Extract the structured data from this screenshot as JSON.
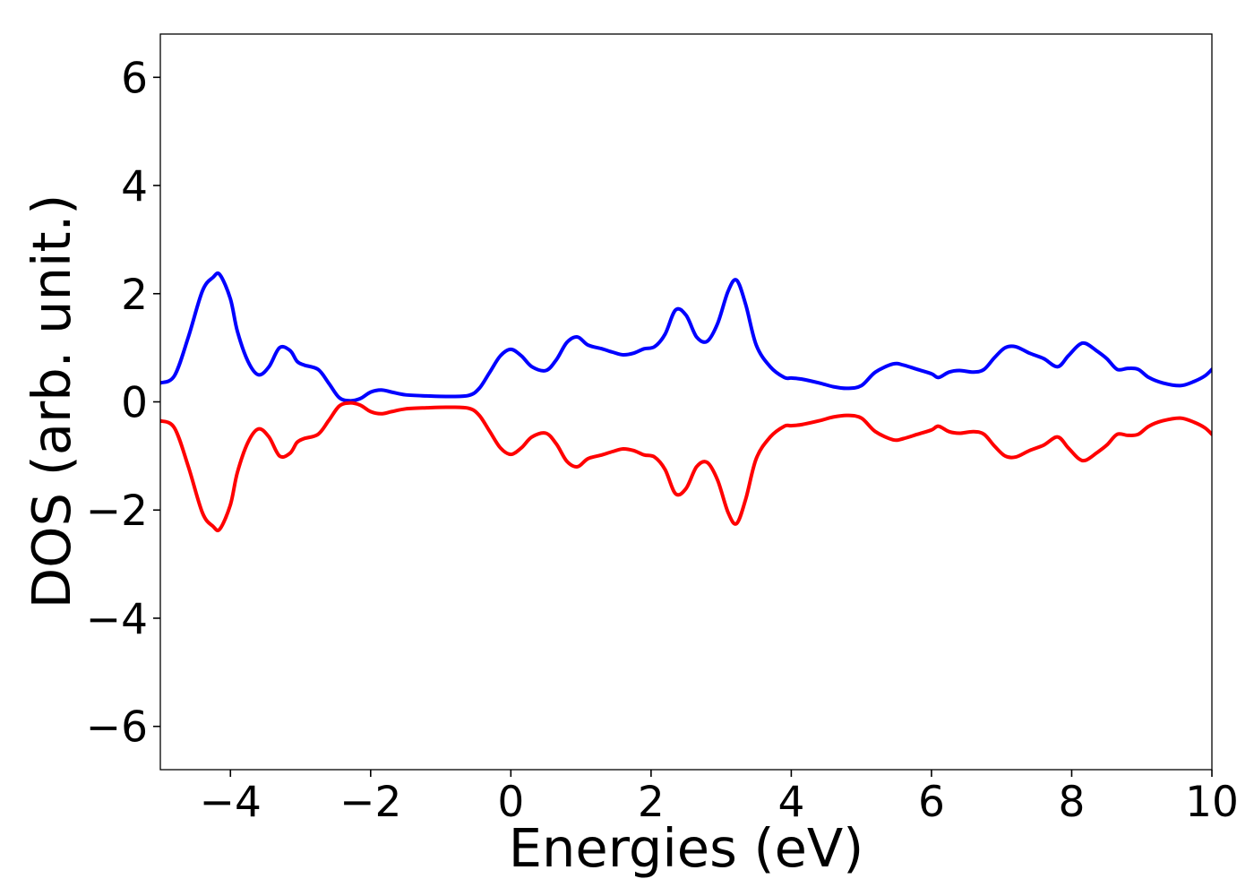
{
  "chart_data": {
    "type": "line",
    "title": "",
    "xlabel": "Energies (eV)",
    "ylabel": "DOS (arb. unit.)",
    "xlim": [
      -5,
      10
    ],
    "ylim": [
      -6.8,
      6.8
    ],
    "grid": false,
    "legend": "none",
    "xticks": [
      -4,
      -2,
      0,
      2,
      4,
      6,
      8,
      10
    ],
    "xtick_labels": [
      "−4",
      "−2",
      "0",
      "2",
      "4",
      "6",
      "8",
      "10"
    ],
    "yticks": [
      -6,
      -4,
      -2,
      0,
      2,
      4,
      6
    ],
    "ytick_labels": [
      "−6",
      "−4",
      "−2",
      "0",
      "2",
      "4",
      "6"
    ],
    "series": [
      {
        "color": "#0000ff",
        "x": [
          -5.0,
          -4.8,
          -4.6,
          -4.4,
          -4.25,
          -4.15,
          -4.0,
          -3.9,
          -3.75,
          -3.6,
          -3.45,
          -3.3,
          -3.15,
          -3.05,
          -2.95,
          -2.75,
          -2.6,
          -2.45,
          -2.3,
          -2.15,
          -2.0,
          -1.85,
          -1.7,
          -1.5,
          -1.2,
          -0.9,
          -0.6,
          -0.45,
          -0.3,
          -0.15,
          0.0,
          0.15,
          0.3,
          0.5,
          0.65,
          0.8,
          0.95,
          1.1,
          1.3,
          1.45,
          1.6,
          1.75,
          1.9,
          2.05,
          2.2,
          2.35,
          2.5,
          2.65,
          2.8,
          2.95,
          3.1,
          3.22,
          3.35,
          3.5,
          3.7,
          3.9,
          4.0,
          4.15,
          4.4,
          4.6,
          4.8,
          5.0,
          5.2,
          5.45,
          5.6,
          5.8,
          6.0,
          6.1,
          6.25,
          6.4,
          6.6,
          6.75,
          6.9,
          7.05,
          7.2,
          7.4,
          7.6,
          7.8,
          7.95,
          8.1,
          8.2,
          8.35,
          8.5,
          8.65,
          8.8,
          8.95,
          9.1,
          9.3,
          9.55,
          9.75,
          9.9,
          10.0
        ],
        "y": [
          0.35,
          0.48,
          1.2,
          2.05,
          2.3,
          2.35,
          1.9,
          1.3,
          0.75,
          0.5,
          0.65,
          1.0,
          0.95,
          0.75,
          0.68,
          0.6,
          0.35,
          0.08,
          0.02,
          0.06,
          0.18,
          0.22,
          0.18,
          0.13,
          0.11,
          0.1,
          0.12,
          0.25,
          0.55,
          0.85,
          0.97,
          0.85,
          0.65,
          0.58,
          0.78,
          1.1,
          1.2,
          1.05,
          0.98,
          0.92,
          0.87,
          0.9,
          0.98,
          1.02,
          1.25,
          1.7,
          1.6,
          1.2,
          1.12,
          1.45,
          2.05,
          2.25,
          1.8,
          1.05,
          0.65,
          0.45,
          0.44,
          0.42,
          0.35,
          0.28,
          0.25,
          0.3,
          0.55,
          0.7,
          0.68,
          0.6,
          0.52,
          0.45,
          0.55,
          0.58,
          0.55,
          0.6,
          0.82,
          1.0,
          1.02,
          0.9,
          0.8,
          0.65,
          0.85,
          1.05,
          1.08,
          0.95,
          0.8,
          0.6,
          0.62,
          0.6,
          0.45,
          0.35,
          0.3,
          0.38,
          0.48,
          0.6
        ]
      },
      {
        "color": "#ff0000",
        "x": [
          -5.0,
          -4.8,
          -4.6,
          -4.4,
          -4.25,
          -4.15,
          -4.0,
          -3.9,
          -3.75,
          -3.6,
          -3.45,
          -3.3,
          -3.15,
          -3.05,
          -2.95,
          -2.75,
          -2.6,
          -2.45,
          -2.3,
          -2.15,
          -2.0,
          -1.85,
          -1.7,
          -1.5,
          -1.2,
          -0.9,
          -0.6,
          -0.45,
          -0.3,
          -0.15,
          0.0,
          0.15,
          0.3,
          0.5,
          0.65,
          0.8,
          0.95,
          1.1,
          1.3,
          1.45,
          1.6,
          1.75,
          1.9,
          2.05,
          2.2,
          2.35,
          2.5,
          2.65,
          2.8,
          2.95,
          3.1,
          3.22,
          3.35,
          3.5,
          3.7,
          3.9,
          4.0,
          4.15,
          4.4,
          4.6,
          4.8,
          5.0,
          5.2,
          5.45,
          5.6,
          5.8,
          6.0,
          6.1,
          6.25,
          6.4,
          6.6,
          6.75,
          6.9,
          7.05,
          7.2,
          7.4,
          7.6,
          7.8,
          7.95,
          8.1,
          8.2,
          8.35,
          8.5,
          8.65,
          8.8,
          8.95,
          9.1,
          9.3,
          9.55,
          9.75,
          9.9,
          10.0
        ],
        "y": [
          -0.35,
          -0.48,
          -1.2,
          -2.05,
          -2.3,
          -2.35,
          -1.9,
          -1.3,
          -0.75,
          -0.5,
          -0.65,
          -1.0,
          -0.95,
          -0.75,
          -0.68,
          -0.6,
          -0.35,
          -0.08,
          -0.02,
          -0.06,
          -0.18,
          -0.22,
          -0.18,
          -0.13,
          -0.11,
          -0.1,
          -0.12,
          -0.25,
          -0.55,
          -0.85,
          -0.97,
          -0.85,
          -0.65,
          -0.58,
          -0.78,
          -1.1,
          -1.2,
          -1.05,
          -0.98,
          -0.92,
          -0.87,
          -0.9,
          -0.98,
          -1.02,
          -1.25,
          -1.7,
          -1.6,
          -1.2,
          -1.12,
          -1.45,
          -2.05,
          -2.25,
          -1.8,
          -1.05,
          -0.65,
          -0.45,
          -0.44,
          -0.42,
          -0.35,
          -0.28,
          -0.25,
          -0.3,
          -0.55,
          -0.7,
          -0.68,
          -0.6,
          -0.52,
          -0.45,
          -0.55,
          -0.58,
          -0.55,
          -0.6,
          -0.82,
          -1.0,
          -1.02,
          -0.9,
          -0.8,
          -0.65,
          -0.85,
          -1.05,
          -1.08,
          -0.95,
          -0.8,
          -0.6,
          -0.62,
          -0.6,
          -0.45,
          -0.35,
          -0.3,
          -0.38,
          -0.48,
          -0.6
        ]
      }
    ]
  }
}
